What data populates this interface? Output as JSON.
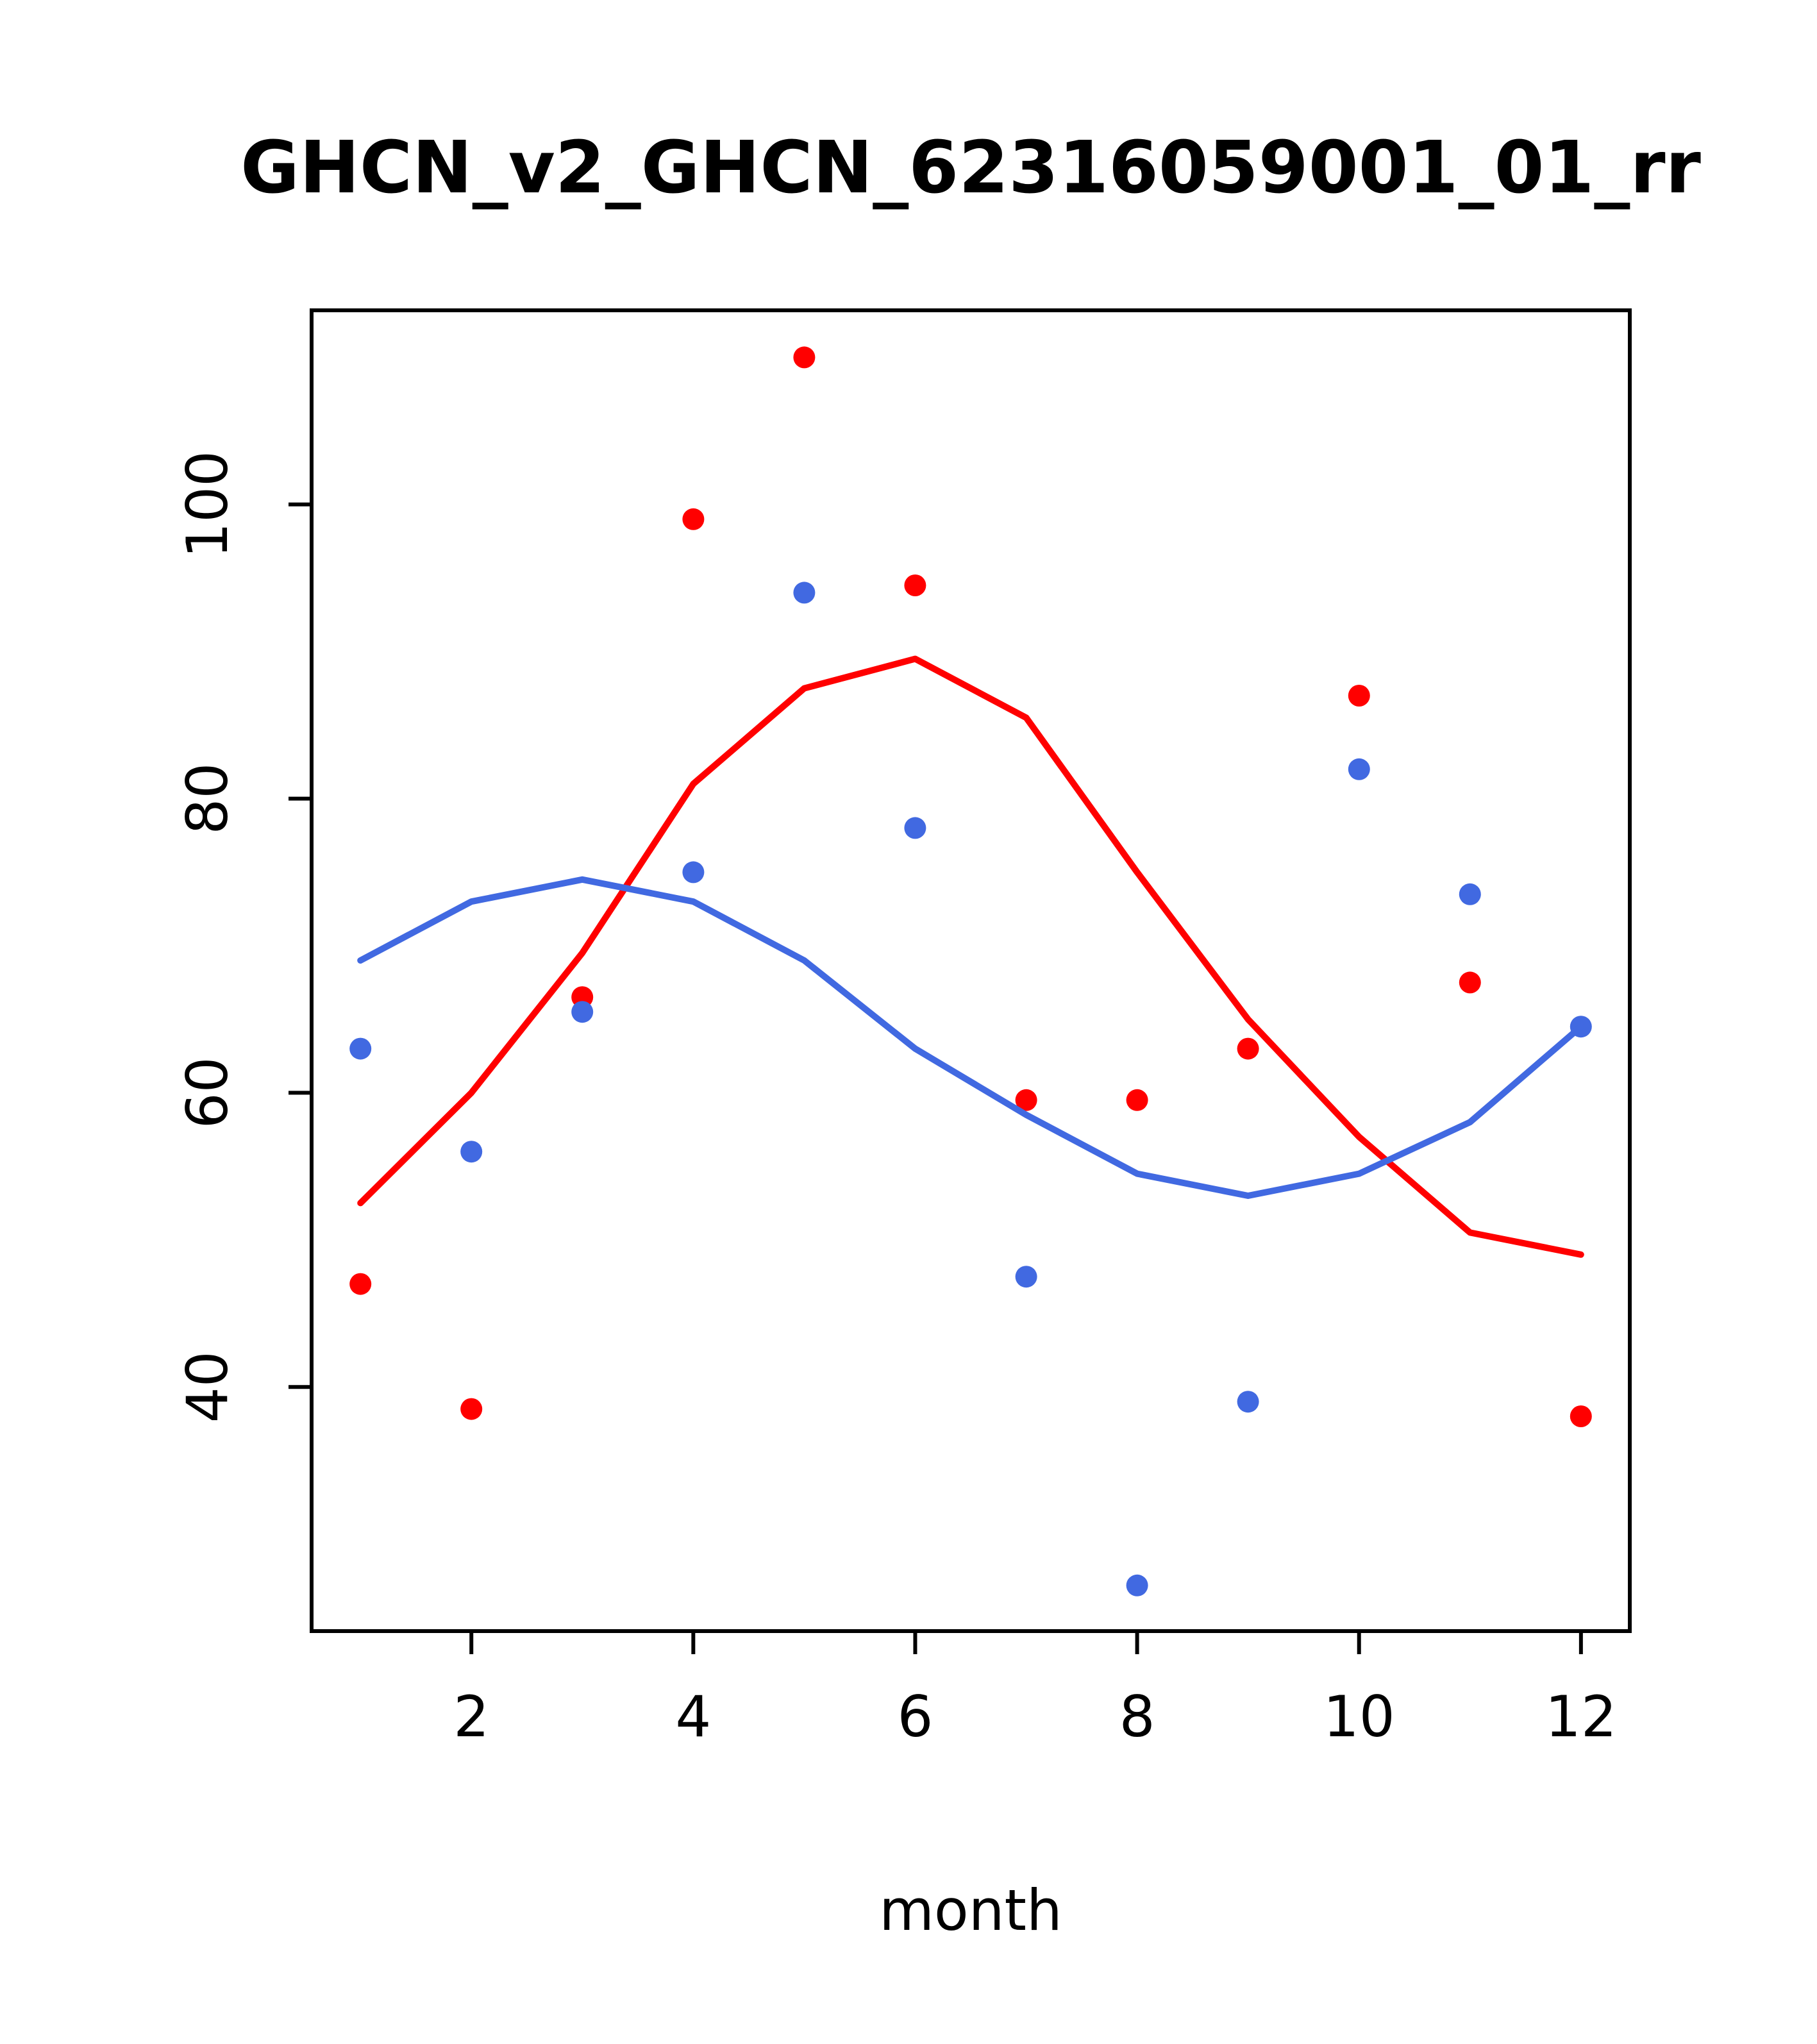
{
  "page": {
    "title": "GHCN_v2_GHCN_62316059001_01_rr"
  },
  "chart_data": {
    "type": "scatter",
    "title": "GHCN_v2_GHCN_62316059001_01_rr",
    "xlabel": "month",
    "ylabel": "",
    "xlim": [
      0.56,
      12.44
    ],
    "ylim": [
      23.4,
      113.2
    ],
    "x_ticks": [
      2,
      4,
      6,
      8,
      10,
      12
    ],
    "y_ticks": [
      40,
      60,
      80,
      100
    ],
    "grid": false,
    "legend": "none",
    "x": [
      1,
      2,
      3,
      4,
      5,
      6,
      7,
      8,
      9,
      10,
      11,
      12
    ],
    "series": [
      {
        "name": "red-points",
        "kind": "scatter",
        "color": "#ff0000",
        "values": [
          47,
          38.5,
          66.5,
          99,
          110,
          94.5,
          59.5,
          59.5,
          63,
          87,
          67.5,
          38
        ]
      },
      {
        "name": "blue-points",
        "kind": "scatter",
        "color": "#4169e1",
        "values": [
          63,
          56,
          65.5,
          75,
          94,
          78,
          47.5,
          26.5,
          39,
          82,
          73.5,
          64.5
        ]
      },
      {
        "name": "red-smooth-line",
        "kind": "line",
        "color": "#ff0000",
        "values": [
          52.5,
          60,
          69.5,
          81,
          87.5,
          89.5,
          85.5,
          75,
          65,
          57,
          50.5,
          49
        ]
      },
      {
        "name": "blue-smooth-line",
        "kind": "line",
        "color": "#4169e1",
        "values": [
          69,
          73,
          74.5,
          73,
          69,
          63,
          58.5,
          54.5,
          53,
          54.5,
          58,
          64.5
        ]
      }
    ],
    "colors": {
      "red": "#ff0000",
      "blue": "#4169e1",
      "axis": "#000000",
      "background": "#ffffff"
    }
  }
}
